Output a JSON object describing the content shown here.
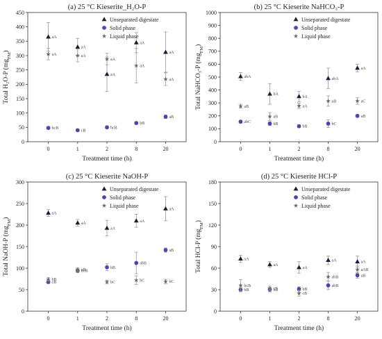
{
  "colors": {
    "unseparated": "#1f1a3a",
    "solid": "#4b46a8",
    "liquid": "#6a6a6a",
    "errorbar": "#9a9a9a"
  },
  "chart_data": [
    {
      "type": "scatter",
      "title": "(a) 25 °C Kieserite_H₂O-P",
      "xlabel": "Treatment time (h)",
      "ylabel": "Total H₂O-P (mg",
      "ylabel_sub": "FM",
      "ylabel_close": ")",
      "categories": [
        "0",
        "1",
        "2",
        "8",
        "20"
      ],
      "ylim": [
        0,
        450
      ],
      "yticks": [
        "0",
        "50",
        "100",
        "150",
        "200",
        "250",
        "300",
        "350",
        "400",
        "450"
      ],
      "legend": [
        "Unseparated digestate",
        "Solid phase",
        "Liquid phase"
      ],
      "series": [
        {
          "name": "Unseparated digestate",
          "marker": "triangle",
          "values": [
            365,
            330,
            235,
            345,
            312
          ],
          "errors": [
            50,
            30,
            60,
            35,
            70
          ],
          "labels": [
            "aA",
            "aA",
            "aA",
            "aA",
            "aA"
          ]
        },
        {
          "name": "Solid phase",
          "marker": "circle",
          "values": [
            48,
            40,
            50,
            65,
            87
          ],
          "errors": [
            4,
            3,
            4,
            5,
            6
          ],
          "labels": [
            "bcB",
            "cB",
            "bcB",
            "bB",
            "aB"
          ]
        },
        {
          "name": "Liquid phase",
          "marker": "star",
          "values": [
            305,
            300,
            288,
            265,
            218
          ],
          "errors": [
            20,
            22,
            20,
            60,
            22
          ],
          "labels": [
            "aA",
            "aA",
            "aA",
            "aA",
            "aA"
          ]
        }
      ]
    },
    {
      "type": "scatter",
      "title": "(b) 25 °C Kieserite NaHCO₃-P",
      "xlabel": "Treatment time (h)",
      "ylabel": "Total NaHCO₃-P (mg",
      "ylabel_sub": "FM",
      "ylabel_close": ")",
      "categories": [
        "0",
        "1",
        "2",
        "8",
        "20"
      ],
      "ylim": [
        0,
        1000
      ],
      "yticks": [
        "0",
        "100",
        "200",
        "300",
        "400",
        "500",
        "600",
        "700",
        "800",
        "900",
        "1000"
      ],
      "legend": [
        "Unseparated digestate",
        "Solid phase",
        "Liquid phase"
      ],
      "series": [
        {
          "name": "Unseparated digestate",
          "marker": "triangle",
          "values": [
            505,
            370,
            350,
            490,
            570
          ],
          "errors": [
            30,
            80,
            40,
            80,
            30
          ],
          "labels": [
            "abA",
            "bA",
            "bA",
            "abA",
            "aA"
          ]
        },
        {
          "name": "Solid phase",
          "marker": "circle",
          "values": [
            155,
            140,
            120,
            140,
            200
          ],
          "errors": [
            10,
            15,
            10,
            30,
            10
          ],
          "labels": [
            "abC",
            "bB",
            "bB",
            "bC",
            "aB"
          ]
        },
        {
          "name": "Liquid phase",
          "marker": "star",
          "values": [
            275,
            195,
            278,
            315,
            315
          ],
          "errors": [
            15,
            30,
            20,
            40,
            25
          ],
          "labels": [
            "aB",
            "aB",
            "aA",
            "aB",
            "aC"
          ]
        }
      ]
    },
    {
      "type": "scatter",
      "title": "(c) 25 °C Kieserite NaOH-P",
      "xlabel": "Treatment time (h)",
      "ylabel": "Total NaOH-P (mg",
      "ylabel_sub": "FM",
      "ylabel_close": ")",
      "categories": [
        "0",
        "1",
        "2",
        "8",
        "20"
      ],
      "ylim": [
        0,
        300
      ],
      "yticks": [
        "0",
        "50",
        "100",
        "150",
        "200",
        "250",
        "300"
      ],
      "legend": [
        "Unseparated digestate",
        "Solid phase",
        "Liquid phase"
      ],
      "series": [
        {
          "name": "Unseparated digestate",
          "marker": "triangle",
          "values": [
            228,
            205,
            193,
            210,
            238
          ],
          "errors": [
            8,
            8,
            18,
            15,
            28
          ],
          "labels": [
            "aA",
            "aA",
            "aA",
            "aA",
            "aA"
          ]
        },
        {
          "name": "Solid phase",
          "marker": "circle",
          "values": [
            68,
            94,
            102,
            112,
            142
          ],
          "errors": [
            4,
            4,
            8,
            25,
            5
          ],
          "labels": [
            "cB",
            "bcB",
            "bB",
            "abB",
            "aB"
          ]
        },
        {
          "name": "Liquid phase",
          "marker": "star",
          "values": [
            74,
            97,
            68,
            72,
            69
          ],
          "errors": [
            4,
            4,
            4,
            10,
            5
          ],
          "labels": [
            "bB",
            "aB",
            "bC",
            "bC",
            "bC"
          ]
        }
      ]
    },
    {
      "type": "scatter",
      "title": "(d) 25 °C Kieserite HCl-P",
      "xlabel": "Treatment time (h)",
      "ylabel": "Total HCl-P (mg",
      "ylabel_sub": "FM",
      "ylabel_close": ")",
      "categories": [
        "0",
        "1",
        "2",
        "8",
        "20"
      ],
      "ylim": [
        0,
        180
      ],
      "yticks": [
        "0",
        "30",
        "60",
        "90",
        "120",
        "150",
        "180"
      ],
      "legend": [
        "Unseparated digestate",
        "Solid phase",
        "Liquid phase"
      ],
      "series": [
        {
          "name": "Unseparated digestate",
          "marker": "triangle",
          "values": [
            73,
            65,
            61,
            71,
            69
          ],
          "errors": [
            5,
            4,
            8,
            6,
            8
          ],
          "labels": [
            "aA",
            "aA",
            "aA",
            "aA",
            "aA"
          ]
        },
        {
          "name": "Solid phase",
          "marker": "circle",
          "values": [
            30,
            30,
            31,
            36,
            50
          ],
          "errors": [
            3,
            3,
            3,
            6,
            4
          ],
          "labels": [
            "bB",
            "bB",
            "bB",
            "abB",
            "aB"
          ]
        },
        {
          "name": "Liquid phase",
          "marker": "star",
          "values": [
            36,
            32,
            25,
            48,
            58
          ],
          "errors": [
            8,
            3,
            4,
            6,
            5
          ],
          "labels": [
            "bcB",
            "cB",
            "cB",
            "abB",
            "aAB"
          ]
        }
      ]
    }
  ]
}
